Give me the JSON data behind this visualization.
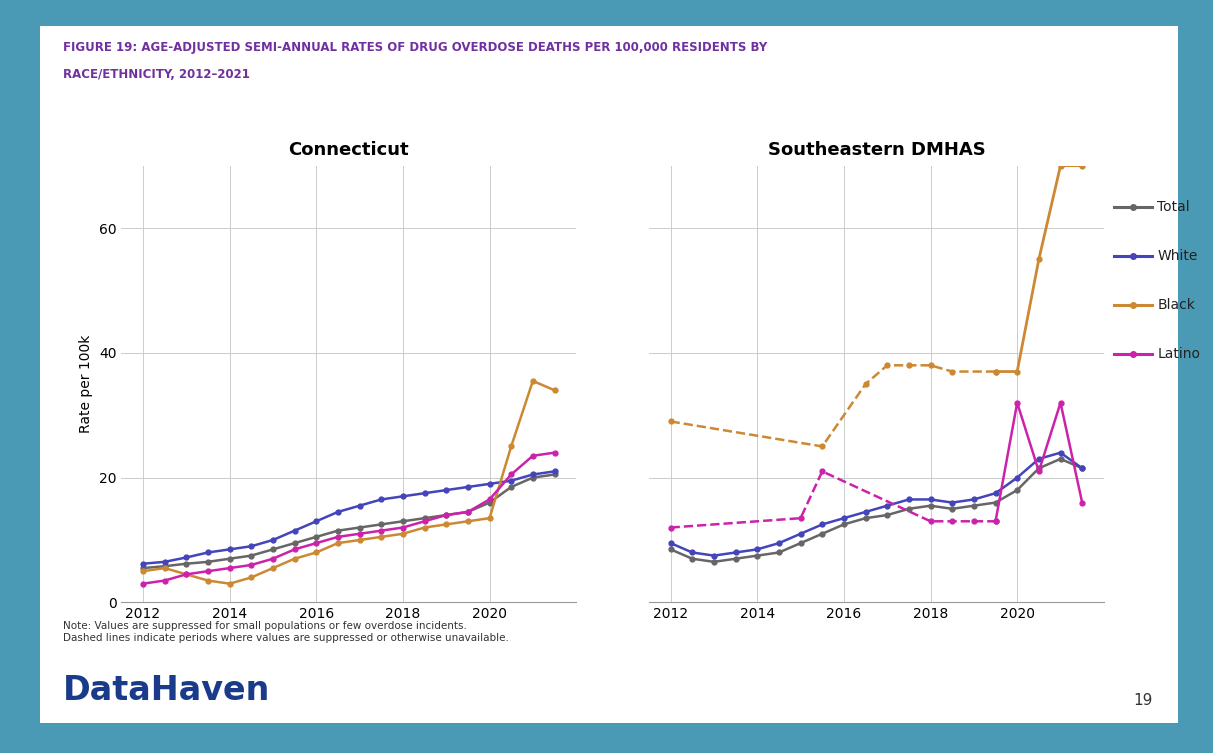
{
  "title_line1": "FIGURE 19: AGE-ADJUSTED SEMI-ANNUAL RATES OF DRUG OVERDOSE DEATHS PER 100,000 RESIDENTS BY",
  "title_line2": "RACE/ETHNICITY, 2012–2021",
  "title_color": "#7030A0",
  "chart1_title": "Connecticut",
  "chart2_title": "Southeastern DMHAS",
  "ylabel": "Rate per 100k",
  "note": "Note: Values are suppressed for small populations or few overdose incidents.\nDashed lines indicate periods where values are suppressed or otherwise unavailable.",
  "datahaven_text": "DataHaven",
  "page_number": "19",
  "background_color": "#ffffff",
  "outer_bg_color": "#4a9ab5",
  "x_ticks": [
    2012,
    2014,
    2016,
    2018,
    2020
  ],
  "xlim": [
    2011.5,
    2022.0
  ],
  "ylim": [
    0,
    70
  ],
  "yticks": [
    0,
    20,
    40,
    60
  ],
  "colors": {
    "Total": "#666666",
    "White": "#4444bb",
    "Black": "#cc8833",
    "Latino": "#cc22aa"
  },
  "ct_x": [
    2012.0,
    2012.5,
    2013.0,
    2013.5,
    2014.0,
    2014.5,
    2015.0,
    2015.5,
    2016.0,
    2016.5,
    2017.0,
    2017.5,
    2018.0,
    2018.5,
    2019.0,
    2019.5,
    2020.0,
    2020.5,
    2021.0,
    2021.5
  ],
  "ct_total": [
    5.5,
    5.8,
    6.2,
    6.5,
    7.0,
    7.5,
    8.5,
    9.5,
    10.5,
    11.5,
    12.0,
    12.5,
    13.0,
    13.5,
    14.0,
    14.5,
    16.0,
    18.5,
    20.0,
    20.5
  ],
  "ct_white": [
    6.2,
    6.5,
    7.2,
    8.0,
    8.5,
    9.0,
    10.0,
    11.5,
    13.0,
    14.5,
    15.5,
    16.5,
    17.0,
    17.5,
    18.0,
    18.5,
    19.0,
    19.5,
    20.5,
    21.0
  ],
  "ct_black": [
    5.0,
    5.5,
    4.5,
    3.5,
    3.0,
    4.0,
    5.5,
    7.0,
    8.0,
    9.5,
    10.0,
    10.5,
    11.0,
    12.0,
    12.5,
    13.0,
    13.5,
    25.0,
    35.5,
    34.0
  ],
  "ct_latino": [
    3.0,
    3.5,
    4.5,
    5.0,
    5.5,
    6.0,
    7.0,
    8.5,
    9.5,
    10.5,
    11.0,
    11.5,
    12.0,
    13.0,
    14.0,
    14.5,
    16.5,
    20.5,
    23.5,
    24.0
  ],
  "se_x_all": [
    2012.0,
    2012.5,
    2013.0,
    2013.5,
    2014.0,
    2014.5,
    2015.0,
    2015.5,
    2016.0,
    2016.5,
    2017.0,
    2017.5,
    2018.0,
    2018.5,
    2019.0,
    2019.5,
    2020.0,
    2020.5,
    2021.0,
    2021.5
  ],
  "se_total": [
    8.5,
    7.0,
    6.5,
    7.0,
    7.5,
    8.0,
    9.5,
    11.0,
    12.5,
    13.5,
    14.0,
    15.0,
    15.5,
    15.0,
    15.5,
    16.0,
    18.0,
    21.5,
    23.0,
    21.5
  ],
  "se_white": [
    9.5,
    8.0,
    7.5,
    8.0,
    8.5,
    9.5,
    11.0,
    12.5,
    13.5,
    14.5,
    15.5,
    16.5,
    16.5,
    16.0,
    16.5,
    17.5,
    20.0,
    23.0,
    24.0,
    21.5
  ],
  "se_x_black_dashed": [
    2012.0,
    2015.5,
    2016.5,
    2017.0,
    2017.5,
    2018.0,
    2018.5,
    2019.5
  ],
  "se_black_dashed": [
    29.0,
    25.0,
    35.0,
    38.0,
    38.0,
    38.0,
    37.0,
    37.0
  ],
  "se_x_black_solid": [
    2019.5,
    2020.0,
    2020.5,
    2021.0,
    2021.5
  ],
  "se_black_solid": [
    37.0,
    37.0,
    55.0,
    70.0,
    70.0
  ],
  "se_x_latino_dashed": [
    2012.0,
    2015.0,
    2015.5,
    2018.0,
    2018.5,
    2019.0,
    2019.5
  ],
  "se_latino_dashed": [
    12.0,
    13.5,
    21.0,
    13.0,
    13.0,
    13.0,
    13.0
  ],
  "se_x_latino_solid": [
    2019.5,
    2020.0,
    2020.5,
    2021.0,
    2021.5
  ],
  "se_latino_solid": [
    13.0,
    32.0,
    21.0,
    32.0,
    16.0
  ]
}
